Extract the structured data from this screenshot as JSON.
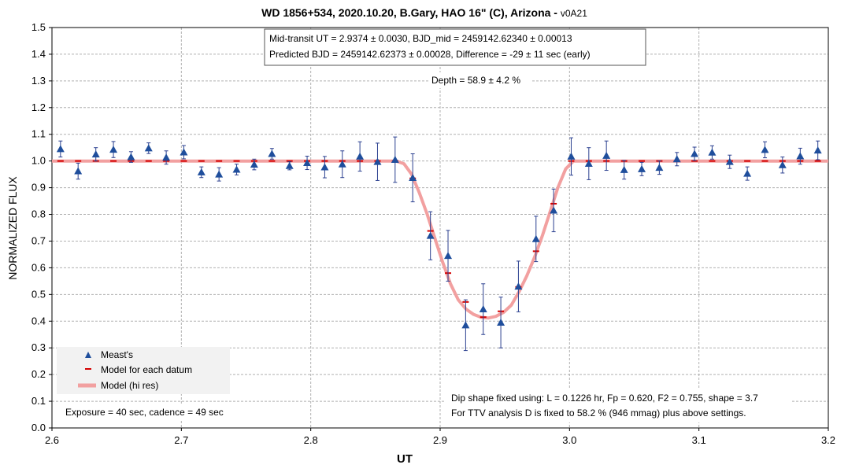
{
  "chart_data": {
    "type": "scatter",
    "title": "WD 1856+534, 2020.10.20, B.Gary, HAO 16\" (C), Arizona - ",
    "title_version": "v0A21",
    "xlabel": "UT",
    "ylabel": "NORMALIZED FLUX",
    "xlim": [
      2.6,
      3.2
    ],
    "ylim": [
      0.0,
      1.5
    ],
    "xticks": [
      "2.6",
      "2.7",
      "2.8",
      "2.9",
      "3.0",
      "3.1",
      "3.2"
    ],
    "yticks": [
      "0.0",
      "0.1",
      "0.2",
      "0.3",
      "0.4",
      "0.5",
      "0.6",
      "0.7",
      "0.8",
      "0.9",
      "1.0",
      "1.1",
      "1.2",
      "1.3",
      "1.4",
      "1.5"
    ],
    "grid": true,
    "legend": {
      "position": "bottom-left",
      "entries": [
        "Meast's",
        "Model for each datum",
        "Model (hi res)"
      ]
    },
    "colors": {
      "measurement": "#1f4e9c",
      "errorbar": "#2a3f8f",
      "model_datum": "#d40000",
      "model_hires": "#f2a0a0",
      "grid": "#b0b0b0"
    },
    "annotations": {
      "box_line1": "Mid-transit UT = 2.9374 ± 0.0030, BJD_mid = 2459142.62340 ± 0.00013",
      "box_line2": "Predicted BJD = 2459142.62373 ± 0.00028, Difference = -29 ± 11 sec (early)",
      "depth": "Depth = 58.9 ± 4.2 %",
      "exposure": "Exposure = 40 sec, cadence = 49 sec",
      "dip_line1": "Dip shape fixed using:  L = 0.1226 hr, Fp = 0.620, F2 = 0.755, shape = 3.7",
      "dip_line2": "For TTV analysis D is fixed  to 58.2 % (946 mmag) plus above settings."
    },
    "series": [
      {
        "name": "Meast's",
        "x": [
          2.6066,
          2.6202,
          2.6339,
          2.6475,
          2.6611,
          2.6747,
          2.6883,
          2.7019,
          2.7155,
          2.7291,
          2.7427,
          2.7563,
          2.77,
          2.7836,
          2.7972,
          2.8108,
          2.8244,
          2.838,
          2.8516,
          2.8652,
          2.8788,
          2.8925,
          2.9061,
          2.9197,
          2.9333,
          2.9469,
          2.9605,
          2.9741,
          2.9877,
          3.0013,
          3.0149,
          3.0285,
          3.0422,
          3.0558,
          3.0694,
          3.083,
          3.0966,
          3.1102,
          3.1238,
          3.1374,
          3.151,
          3.1646,
          3.1783,
          3.1919
        ],
        "y": [
          1.045,
          0.962,
          1.025,
          1.043,
          1.015,
          1.048,
          1.013,
          1.033,
          0.958,
          0.95,
          0.968,
          0.987,
          1.027,
          0.982,
          0.993,
          0.977,
          0.988,
          1.017,
          0.997,
          1.005,
          0.937,
          0.72,
          0.645,
          0.385,
          0.445,
          0.395,
          0.53,
          0.708,
          0.815,
          1.017,
          0.99,
          1.02,
          0.967,
          0.97,
          0.975,
          1.007,
          1.027,
          1.032,
          0.997,
          0.953,
          1.042,
          0.985,
          1.018,
          1.04
        ],
        "yerr": [
          0.03,
          0.03,
          0.025,
          0.03,
          0.02,
          0.02,
          0.025,
          0.025,
          0.02,
          0.025,
          0.02,
          0.02,
          0.02,
          0.015,
          0.025,
          0.04,
          0.05,
          0.055,
          0.07,
          0.085,
          0.09,
          0.09,
          0.095,
          0.095,
          0.095,
          0.095,
          0.095,
          0.085,
          0.08,
          0.07,
          0.06,
          0.055,
          0.035,
          0.025,
          0.025,
          0.025,
          0.025,
          0.025,
          0.025,
          0.025,
          0.03,
          0.03,
          0.03,
          0.035
        ]
      },
      {
        "name": "Model for each datum",
        "x": [
          2.6066,
          2.6202,
          2.6339,
          2.6475,
          2.6611,
          2.6747,
          2.6883,
          2.7019,
          2.7155,
          2.7291,
          2.7427,
          2.7563,
          2.77,
          2.7836,
          2.7972,
          2.8108,
          2.8244,
          2.838,
          2.8516,
          2.8652,
          2.8788,
          2.8925,
          2.9061,
          2.9197,
          2.9333,
          2.9469,
          2.9605,
          2.9741,
          2.9877,
          3.0013,
          3.0149,
          3.0285,
          3.0422,
          3.0558,
          3.0694,
          3.083,
          3.0966,
          3.1102,
          3.1238,
          3.1374,
          3.151,
          3.1646,
          3.1783,
          3.1919
        ],
        "y": [
          1.0,
          1.0,
          1.0,
          1.0,
          1.0,
          1.0,
          1.0,
          1.0,
          1.0,
          1.0,
          1.0,
          1.0,
          1.0,
          1.0,
          1.0,
          1.0,
          1.0,
          1.0,
          1.0,
          1.0,
          0.935,
          0.738,
          0.58,
          0.472,
          0.415,
          0.437,
          0.528,
          0.662,
          0.84,
          1.0,
          1.0,
          1.0,
          1.0,
          1.0,
          1.0,
          1.0,
          1.0,
          1.0,
          1.0,
          1.0,
          1.0,
          1.0,
          1.0,
          1.0
        ]
      },
      {
        "name": "Model (hi res)",
        "x": [
          2.6,
          2.866,
          2.872,
          2.878,
          2.884,
          2.89,
          2.896,
          2.902,
          2.908,
          2.914,
          2.92,
          2.926,
          2.932,
          2.9374,
          2.943,
          2.949,
          2.955,
          2.961,
          2.967,
          2.973,
          2.979,
          2.985,
          2.991,
          2.997,
          3.003,
          3.01,
          3.2
        ],
        "y": [
          1.0,
          1.0,
          0.99,
          0.95,
          0.88,
          0.8,
          0.71,
          0.62,
          0.54,
          0.48,
          0.445,
          0.425,
          0.414,
          0.412,
          0.418,
          0.433,
          0.46,
          0.51,
          0.57,
          0.64,
          0.72,
          0.81,
          0.9,
          0.97,
          1.0,
          1.0,
          1.0
        ]
      }
    ]
  }
}
